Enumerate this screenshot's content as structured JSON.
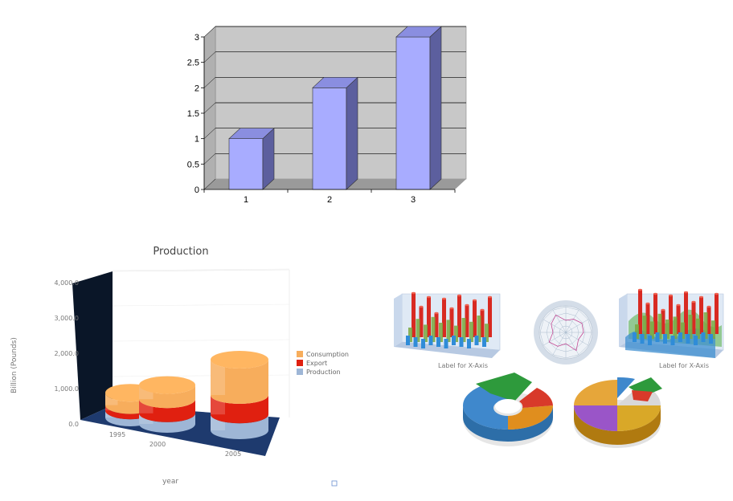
{
  "chart_data": [
    {
      "type": "bar",
      "categories": [
        "1",
        "2",
        "3"
      ],
      "values": [
        1,
        2,
        3
      ],
      "ylim": [
        0,
        3
      ],
      "yticks": [
        "0",
        "0.5",
        "1",
        "1.5",
        "2",
        "2.5",
        "3"
      ],
      "grid": true,
      "colors": {
        "bar_front": "#a8acff",
        "bar_side": "#5c5f9e",
        "bar_top": "#8a8ee0",
        "wall": "#c8c8c8",
        "floor": "#9a9a9a"
      }
    },
    {
      "type": "bar",
      "title": "Production",
      "xlabel": "year",
      "ylabel": "Billion (Pounds)",
      "categories": [
        "1995",
        "2000",
        "2005"
      ],
      "ylim": [
        0,
        4000
      ],
      "yticks": [
        "0.0",
        "1,000.0",
        "2,000.0",
        "3,000.0",
        "4,000.0"
      ],
      "legend_position": "right",
      "series": [
        {
          "name": "Production",
          "color": "#9eb6d6",
          "values": [
            200,
            300,
            450
          ]
        },
        {
          "name": "Export",
          "color": "#e02010",
          "values": [
            150,
            400,
            550
          ]
        },
        {
          "name": "Consumption",
          "color": "#f7ad5c",
          "values": [
            350,
            400,
            1000
          ]
        }
      ]
    },
    {
      "type": "bar",
      "kind": "3d-grouped-cylinder-thumbnail"
    },
    {
      "type": "other",
      "kind": "radar-thumbnail"
    },
    {
      "type": "area",
      "kind": "3d-area-cylinder-thumbnail"
    },
    {
      "type": "pie",
      "kind": "3d-doughnut-thumbnail"
    },
    {
      "type": "pie",
      "kind": "3d-pie-thumbnail"
    }
  ]
}
